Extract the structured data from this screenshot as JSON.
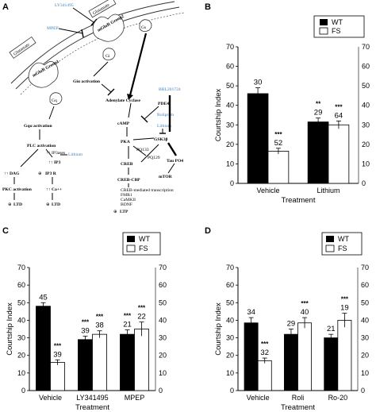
{
  "panels": {
    "a": {
      "letter": "A",
      "nodes": {
        "ly": "LY341495",
        "mpep": "MPEP",
        "glu_left": "Glutamate",
        "glu_right": "Glutamate",
        "mglur2": "mGluR Group2",
        "mglur1": "mGluR Group1",
        "gq": "Gq",
        "gi": "Gi",
        "gs": "Gs",
        "gi_act": "Giα activation",
        "ac": "Adenylate Cyclase",
        "bro": "BRL201724",
        "pde4": "PDE4",
        "roli": "Rolipram",
        "gq_act": "Gqα activation",
        "plc": "PLC activation",
        "dag_rise": "↑↑ IP3ases",
        "lithium1": "Lithium",
        "ip3": "↑↑ IP3",
        "camp": "cAMP",
        "lithium2": "Lithium",
        "gsk": "GSK3β",
        "dag": "↑↑ DAG",
        "ip3r": "IP3 R",
        "pka": "PKA",
        "pq1": "PQ133",
        "pq2": "PQ129",
        "pkc": "PKC activation",
        "ca": "↑↑ Ca++",
        "creb": "CREB",
        "tau": "Tau PO4",
        "ltd1": "LTD",
        "ltd2": "LTD",
        "mtor": "mTOR",
        "crebcbp": "CREB-CBP",
        "cmed": "CREB-mediated transcription",
        "fmr1": "FMR1",
        "camk": "CaMKII",
        "bdnf": "BDNF",
        "ltp": "LTP",
        "circle_plus": "⊕",
        "circle_minus": "⊖"
      }
    },
    "b": {
      "letter": "B",
      "legend": [
        "WT",
        "FS"
      ],
      "ylabel": "Courtship Index",
      "xlabel": "Treatment",
      "categories": [
        "Vehicle",
        "Lithium"
      ],
      "yticks": [
        "0",
        "10",
        "20",
        "30",
        "40",
        "50",
        "60",
        "70"
      ],
      "wt_n": [
        "30",
        "29"
      ],
      "fs_n": [
        "52",
        "64"
      ],
      "wt_star": [
        "",
        "**"
      ],
      "fs_star": [
        "***",
        "***"
      ]
    },
    "c": {
      "letter": "C",
      "legend": [
        "WT",
        "FS"
      ],
      "ylabel": "Courtship Index",
      "xlabel": "Treatment",
      "categories": [
        "Vehicle",
        "LY341495",
        "MPEP"
      ],
      "yticks": [
        "0",
        "10",
        "20",
        "30",
        "40",
        "50",
        "60",
        "70"
      ],
      "wt_n": [
        "45",
        "39",
        "21"
      ],
      "fs_n": [
        "39",
        "38",
        "22"
      ],
      "wt_star": [
        "",
        "***",
        "***"
      ],
      "fs_star": [
        "***",
        "***",
        "***"
      ]
    },
    "d": {
      "letter": "D",
      "legend": [
        "WT",
        "FS"
      ],
      "ylabel": "Courtship Index",
      "xlabel": "Treatment",
      "categories": [
        "Vehicle",
        "Roli",
        "Ro-20"
      ],
      "yticks": [
        "0",
        "10",
        "20",
        "30",
        "40",
        "50",
        "60",
        "70"
      ],
      "wt_n": [
        "34",
        "29",
        "21"
      ],
      "fs_n": [
        "32",
        "40",
        "19"
      ],
      "wt_star": [
        "",
        "",
        ""
      ],
      "fs_star": [
        "***",
        "***",
        "***"
      ]
    }
  },
  "colors": {
    "wt": "#000000",
    "fs": "#ffffff",
    "drug": "#3b83c4"
  },
  "chart_data": [
    {
      "type": "bar",
      "panel": "B",
      "categories": [
        "Vehicle",
        "Lithium"
      ],
      "series": [
        {
          "name": "WT",
          "values": [
            46,
            31.5
          ],
          "error": [
            3,
            2
          ]
        },
        {
          "name": "FS",
          "values": [
            16.5,
            30
          ],
          "error": [
            1.5,
            2
          ]
        }
      ],
      "xlabel": "Treatment",
      "ylabel": "Courtship Index",
      "ylim": [
        0,
        70
      ],
      "legend": "top-right"
    },
    {
      "type": "bar",
      "panel": "C",
      "categories": [
        "Vehicle",
        "LY341495",
        "MPEP"
      ],
      "series": [
        {
          "name": "WT",
          "values": [
            48,
            29,
            32
          ],
          "error": [
            2,
            2,
            2.5
          ]
        },
        {
          "name": "FS",
          "values": [
            16,
            32,
            35
          ],
          "error": [
            1.5,
            2,
            4
          ]
        }
      ],
      "xlabel": "Treatment",
      "ylabel": "Courtship Index",
      "ylim": [
        0,
        70
      ],
      "legend": "top-right"
    },
    {
      "type": "bar",
      "panel": "D",
      "categories": [
        "Vehicle",
        "Roli",
        "Ro-20"
      ],
      "series": [
        {
          "name": "WT",
          "values": [
            38.5,
            32,
            30
          ],
          "error": [
            3,
            3,
            2
          ]
        },
        {
          "name": "FS",
          "values": [
            17,
            38.5,
            40
          ],
          "error": [
            1.5,
            3,
            4
          ]
        }
      ],
      "xlabel": "Treatment",
      "ylabel": "Courtship Index",
      "ylim": [
        0,
        70
      ],
      "legend": "top-right"
    }
  ]
}
